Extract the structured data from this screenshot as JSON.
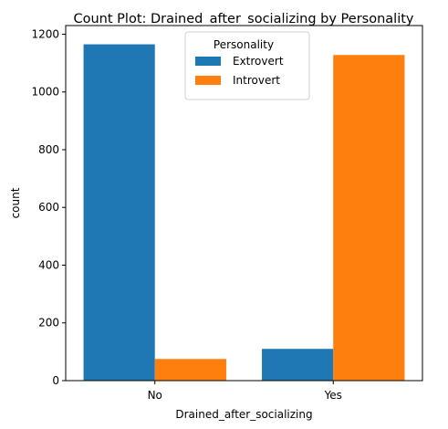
{
  "chart_data": {
    "type": "bar",
    "title": "Count Plot: Drained_after_socializing by Personality",
    "xlabel": "Drained_after_socializing",
    "ylabel": "count",
    "categories": [
      "No",
      "Yes"
    ],
    "series": [
      {
        "name": "Extrovert",
        "color": "#1f77b4",
        "values": [
          1165,
          110
        ]
      },
      {
        "name": "Introvert",
        "color": "#ff7f0e",
        "values": [
          75,
          1128
        ]
      }
    ],
    "ylim": [
      0,
      1230
    ],
    "yticks": [
      0,
      200,
      400,
      600,
      800,
      1000,
      1200
    ],
    "grid": false,
    "legend": {
      "title": "Personality",
      "placement": "top-center"
    }
  }
}
